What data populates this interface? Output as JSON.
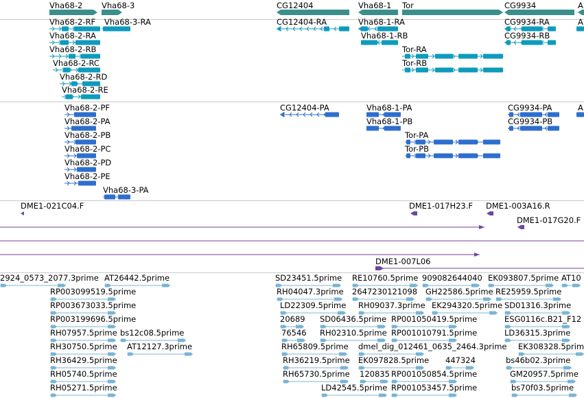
{
  "colors": {
    "gene": "#3a8f8c",
    "transcript": "#0e9bbd",
    "protein": "#2e6fce",
    "clone": "#6d45a8",
    "clone_line": "#7a3e8e",
    "est": "#78b4d8",
    "divider": "#c8c8c8"
  },
  "tracks": {
    "genes": {
      "items": [
        {
          "label": "Vha68-2",
          "dir": "R"
        },
        {
          "label": "Vha68-3",
          "dir": "R"
        },
        {
          "label": "CG12404",
          "dir": "L"
        },
        {
          "label": "Vha68-1",
          "dir": "L"
        },
        {
          "label": "Tor",
          "dir": "R"
        },
        {
          "label": "CG9934",
          "dir": "L"
        },
        {
          "label": "A",
          "dir": "L"
        }
      ]
    },
    "transcripts": {
      "items": [
        {
          "label": "Vha68-2-RF",
          "dir": "R"
        },
        {
          "label": "Vha68-3-RA",
          "dir": "R"
        },
        {
          "label": "Vha68-2-RA",
          "dir": "R"
        },
        {
          "label": "Vha68-2-RB",
          "dir": "R"
        },
        {
          "label": "Vha68-2-RC",
          "dir": "R"
        },
        {
          "label": "Vha68-2-RD",
          "dir": "R"
        },
        {
          "label": "Vha68-2-RE",
          "dir": "R"
        },
        {
          "label": "CG12404-RA",
          "dir": "L"
        },
        {
          "label": "Vha68-1-RA",
          "dir": "L"
        },
        {
          "label": "Vha68-1-RB",
          "dir": "L"
        },
        {
          "label": "Tor-RA",
          "dir": "R"
        },
        {
          "label": "Tor-RB",
          "dir": "R"
        },
        {
          "label": "CG9934-RA",
          "dir": "L"
        },
        {
          "label": "CG9934-RB",
          "dir": "L"
        },
        {
          "label": "A",
          "dir": "L"
        }
      ]
    },
    "proteins": {
      "items": [
        {
          "label": "Vha68-2-PF",
          "dir": "R"
        },
        {
          "label": "Vha68-2-PA",
          "dir": "R"
        },
        {
          "label": "Vha68-2-PB",
          "dir": "R"
        },
        {
          "label": "Vha68-2-PC",
          "dir": "R"
        },
        {
          "label": "Vha68-2-PD",
          "dir": "R"
        },
        {
          "label": "Vha68-2-PE",
          "dir": "R"
        },
        {
          "label": "Vha68-3-PA",
          "dir": "R"
        },
        {
          "label": "CG12404-PA",
          "dir": "L"
        },
        {
          "label": "Vha68-1-PA",
          "dir": "L"
        },
        {
          "label": "Vha68-1-PB",
          "dir": "L"
        },
        {
          "label": "Tor-PA",
          "dir": "R"
        },
        {
          "label": "Tor-PB",
          "dir": "R"
        },
        {
          "label": "CG9934-PA",
          "dir": "L"
        },
        {
          "label": "CG9934-PB",
          "dir": "L"
        },
        {
          "label": "A",
          "dir": "L"
        }
      ]
    },
    "clones": {
      "items": [
        {
          "label": "DME1-021C04.F"
        },
        {
          "label": "DME1-017H23.F"
        },
        {
          "label": "DME1-003A16.R"
        },
        {
          "label": "DME1-017G20.F"
        },
        {
          "label": "DME1-007L06"
        }
      ]
    },
    "ests": {
      "items": [
        {
          "label": "2924_0573_2077.3prime"
        },
        {
          "label": "AT26442.5prime"
        },
        {
          "label": "SD23451.5prime"
        },
        {
          "label": "RE10760.5prime"
        },
        {
          "label": "909082644040"
        },
        {
          "label": "EK093807.5prime"
        },
        {
          "label": "AT10"
        },
        {
          "label": "RP003099519.5prime"
        },
        {
          "label": "RH04047.3prime"
        },
        {
          "label": "2647230121098"
        },
        {
          "label": "GH22586.5prime"
        },
        {
          "label": "RE25959.5prime"
        },
        {
          "label": "RP003673033.5prime"
        },
        {
          "label": "LD22309.5prime"
        },
        {
          "label": "RH09037.3prime"
        },
        {
          "label": "EK294320.5prime"
        },
        {
          "label": "SD01316.3prime"
        },
        {
          "label": "RP003199696.5prime"
        },
        {
          "label": "20689"
        },
        {
          "label": "SD06436.5prime"
        },
        {
          "label": "RP001050419.5prime"
        },
        {
          "label": "ESG0116c.B21_F12"
        },
        {
          "label": "RH07957.5prime"
        },
        {
          "label": "bs12c08.5prime"
        },
        {
          "label": "76546"
        },
        {
          "label": "RH02310.5prime"
        },
        {
          "label": "RP001010791.5prime"
        },
        {
          "label": "LD36315.3prime"
        },
        {
          "label": "RH30750.5prime"
        },
        {
          "label": "AT12127.3prime"
        },
        {
          "label": "RH65809.5prime"
        },
        {
          "label": "dmel_dig_012461_0635_2464.3prime"
        },
        {
          "label": "EK308328.5prime"
        },
        {
          "label": "RH36429.5prime"
        },
        {
          "label": "RH36219.5prime"
        },
        {
          "label": "EK097828.5prime"
        },
        {
          "label": "447324"
        },
        {
          "label": "bs46b02.3prime"
        },
        {
          "label": "RH05740.5prime"
        },
        {
          "label": "RH65730.5prime"
        },
        {
          "label": "120835"
        },
        {
          "label": "RP001050854.5prime"
        },
        {
          "label": "GM20957.5prime"
        },
        {
          "label": "RH05271.5prime"
        },
        {
          "label": "LD42545.5prime"
        },
        {
          "label": "RP001053457.5prime"
        },
        {
          "label": "bs70f03.5prime"
        }
      ]
    }
  }
}
